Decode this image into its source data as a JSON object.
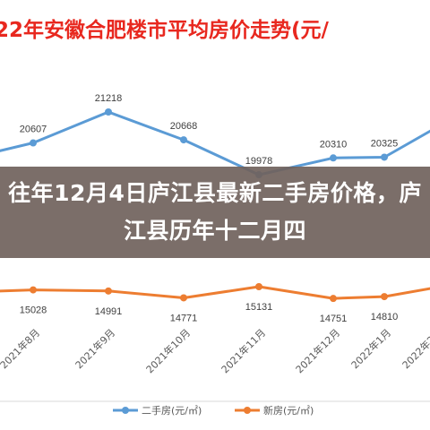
{
  "chart_data": {
    "type": "line",
    "title": "22年安徽合肥楼市平均房价走势(元/",
    "categories": [
      "2021年8月",
      "2021年9月",
      "2021年10月",
      "2021年11月",
      "2021年12月",
      "2022年1月",
      "2022年2月"
    ],
    "series": [
      {
        "name": "二手房(元/㎡)",
        "color": "#5b9bd5",
        "values": [
          20607,
          21218,
          20668,
          19978,
          20310,
          20325,
          20900
        ],
        "labels": [
          "20607",
          "21218",
          "20668",
          "19978",
          "20310",
          "20325",
          ""
        ]
      },
      {
        "name": "新房(元/㎡)",
        "color": "#ed7d31",
        "values": [
          15028,
          14991,
          14771,
          15131,
          14751,
          14810,
          15100
        ],
        "labels": [
          "15028",
          "14991",
          "14771",
          "15131",
          "14751",
          "14810",
          ""
        ]
      }
    ],
    "legend_position": "bottom",
    "grid": false
  },
  "colors": {
    "title": "#e8281f",
    "overlay_bg": "#70625c"
  },
  "overlay": {
    "headline": "往年12月4日庐江县最新二手房价格，庐江县历年十二月四"
  }
}
